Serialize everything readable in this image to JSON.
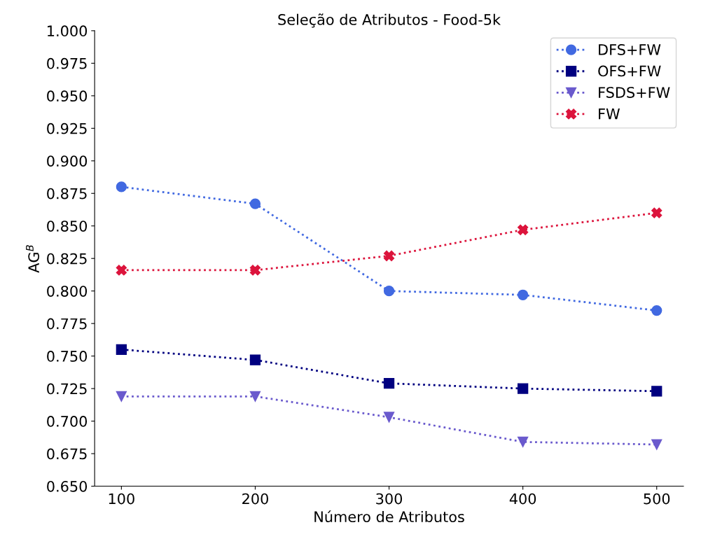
{
  "chart_data": {
    "type": "line",
    "title": "Seleção de Atributos - Food-5k",
    "xlabel": "Número de Atributos",
    "ylabel": "AG$^{B}$",
    "x": [
      100,
      200,
      300,
      400,
      500
    ],
    "series": [
      {
        "name": "DFS+FW",
        "color": "#4169e1",
        "marker": "circle",
        "values": [
          0.88,
          0.867,
          0.8,
          0.797,
          0.785
        ]
      },
      {
        "name": "OFS+FW",
        "color": "#000080",
        "marker": "square",
        "values": [
          0.755,
          0.747,
          0.729,
          0.725,
          0.723
        ]
      },
      {
        "name": "FSDS+FW",
        "color": "#6a5acd",
        "marker": "triangle",
        "values": [
          0.719,
          0.719,
          0.703,
          0.684,
          0.682
        ]
      },
      {
        "name": "FW",
        "color": "#dc143c",
        "marker": "cross",
        "values": [
          0.816,
          0.816,
          0.827,
          0.847,
          0.86
        ]
      }
    ],
    "xlim": [
      80,
      520
    ],
    "xticks": [
      100,
      200,
      300,
      400,
      500
    ],
    "ylim": [
      0.65,
      1.0
    ],
    "yticks": [
      {
        "value": 0.65,
        "label": "0.650"
      },
      {
        "value": 0.675,
        "label": "0.675"
      },
      {
        "value": 0.7,
        "label": "0.700"
      },
      {
        "value": 0.725,
        "label": "0.725"
      },
      {
        "value": 0.75,
        "label": "0.750"
      },
      {
        "value": 0.775,
        "label": "0.775"
      },
      {
        "value": 0.8,
        "label": "0.800"
      },
      {
        "value": 0.825,
        "label": "0.825"
      },
      {
        "value": 0.85,
        "label": "0.850"
      },
      {
        "value": 0.875,
        "label": "0.875"
      },
      {
        "value": 0.9,
        "label": "0.900"
      },
      {
        "value": 0.925,
        "label": "0.925"
      },
      {
        "value": 0.95,
        "label": "0.950"
      },
      {
        "value": 0.975,
        "label": "0.975"
      },
      {
        "value": 1.0,
        "label": "1.000"
      }
    ],
    "line_style": "dotted",
    "legend": "top right",
    "grid": false
  }
}
